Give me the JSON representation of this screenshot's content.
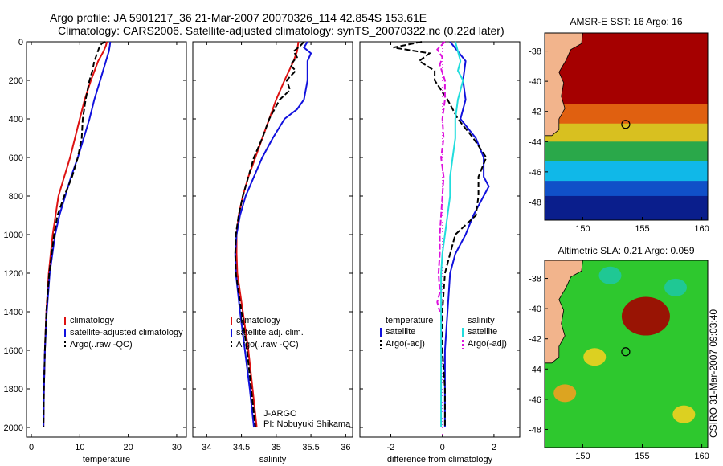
{
  "header": {
    "line1": "Argo profile: JA 5901217_36 21-Mar-2007 20070326_114 42.854S 153.61E",
    "line2": "Climatology: CARS2006. Satellite-adjusted climatology: synTS_20070322.nc (0.22d later)"
  },
  "side_label": "CSIRO 31-Mar-2007 09:03:40",
  "annotation": {
    "line1": "J-ARGO",
    "line2": "PI: Nobuyuki Shikama"
  },
  "colors": {
    "climatology": "#dd1111",
    "satellite": "#1111dd",
    "argo": "#000000",
    "satellite_salinity": "#22dddd",
    "argo_salinity_adj": "#dd11dd",
    "map_ocean_low": "#0a1e8c",
    "map_ocean_high": "#a50000",
    "map_land": "#f2b48c"
  },
  "chart_data": [
    {
      "id": "temperature",
      "type": "line",
      "xlabel": "temperature",
      "ylabel": "",
      "xlim": [
        -1,
        32
      ],
      "ylim": [
        2050,
        0
      ],
      "xticks": [
        0,
        10,
        20,
        30
      ],
      "yticks": [
        0,
        200,
        400,
        600,
        800,
        1000,
        1200,
        1400,
        1600,
        1800,
        2000
      ],
      "legend": {
        "position": "bottom-right",
        "entries": [
          "climatology",
          "satellite-adjusted climatology",
          "Argo(..raw -QC)"
        ]
      },
      "series": [
        {
          "name": "climatology",
          "color": "#dd1111",
          "style": "solid",
          "depth": [
            0,
            20,
            50,
            100,
            200,
            300,
            400,
            500,
            600,
            700,
            800,
            900,
            1000,
            1200,
            1400,
            1600,
            1800,
            2000
          ],
          "values": [
            15.6,
            15.4,
            14.9,
            13.8,
            12.3,
            11.0,
            10.0,
            9.0,
            8.0,
            6.8,
            5.6,
            5.0,
            4.4,
            3.6,
            3.1,
            2.8,
            2.6,
            2.5
          ]
        },
        {
          "name": "satellite-adjusted climatology",
          "color": "#1111dd",
          "style": "solid",
          "depth": [
            0,
            20,
            50,
            100,
            200,
            300,
            400,
            500,
            600,
            700,
            800,
            900,
            1000,
            1200,
            1400,
            1600,
            1800,
            2000
          ],
          "values": [
            16.3,
            16.2,
            16.0,
            15.4,
            14.2,
            13.0,
            12.0,
            10.8,
            9.6,
            8.2,
            7.0,
            5.8,
            4.9,
            3.8,
            3.2,
            2.8,
            2.6,
            2.5
          ]
        },
        {
          "name": "Argo(..raw -QC)",
          "color": "#000000",
          "style": "dashed",
          "depth": [
            0,
            10,
            30,
            60,
            100,
            150,
            200,
            300,
            400,
            500,
            600,
            700,
            800,
            900,
            1000,
            1200,
            1400,
            1600,
            1800,
            2000
          ],
          "values": [
            15.3,
            14.5,
            14.0,
            13.6,
            13.0,
            12.6,
            12.0,
            11.2,
            10.6,
            10.4,
            9.6,
            8.4,
            6.8,
            5.4,
            4.7,
            3.7,
            3.1,
            2.8,
            2.6,
            2.5
          ]
        }
      ]
    },
    {
      "id": "salinity",
      "type": "line",
      "xlabel": "salinity",
      "ylabel": "",
      "xlim": [
        33.8,
        36.1
      ],
      "ylim": [
        2050,
        0
      ],
      "xticks": [
        34,
        34.5,
        35,
        35.5,
        36
      ],
      "yticks": [
        0,
        200,
        400,
        600,
        800,
        1000,
        1200,
        1400,
        1600,
        1800,
        2000
      ],
      "legend": {
        "position": "bottom-right",
        "entries": [
          "climatology",
          "satellite adj. clim.",
          "Argo(..raw -QC)"
        ]
      },
      "series": [
        {
          "name": "climatology",
          "color": "#dd1111",
          "style": "solid",
          "depth": [
            0,
            50,
            100,
            200,
            300,
            400,
            500,
            600,
            700,
            800,
            900,
            1000,
            1100,
            1200,
            1400,
            1600,
            1800,
            2000
          ],
          "values": [
            35.32,
            35.3,
            35.25,
            35.12,
            35.0,
            34.9,
            34.8,
            34.7,
            34.6,
            34.52,
            34.46,
            34.43,
            34.43,
            34.44,
            34.52,
            34.6,
            34.66,
            34.72
          ]
        },
        {
          "name": "satellite adj. clim.",
          "color": "#1111dd",
          "style": "solid",
          "depth": [
            0,
            30,
            60,
            100,
            200,
            300,
            350,
            400,
            500,
            600,
            700,
            800,
            900,
            1000,
            1100,
            1200,
            1400,
            1600,
            1800,
            2000
          ],
          "values": [
            35.45,
            35.4,
            35.5,
            35.45,
            35.45,
            35.4,
            35.3,
            35.12,
            34.95,
            34.8,
            34.68,
            34.56,
            34.48,
            34.43,
            34.41,
            34.42,
            34.48,
            34.55,
            34.62,
            34.68
          ]
        },
        {
          "name": "Argo(..raw -QC)",
          "color": "#000000",
          "style": "dashed",
          "depth": [
            0,
            20,
            50,
            80,
            120,
            150,
            200,
            250,
            300,
            400,
            500,
            600,
            700,
            800,
            900,
            1000,
            1100,
            1200,
            1400,
            1600,
            1800,
            2000
          ],
          "values": [
            35.4,
            35.35,
            35.25,
            35.3,
            35.2,
            35.28,
            35.15,
            35.2,
            35.05,
            34.9,
            34.8,
            34.68,
            34.6,
            34.52,
            34.46,
            34.42,
            34.41,
            34.42,
            34.5,
            34.58,
            34.64,
            34.7
          ]
        }
      ]
    },
    {
      "id": "difference",
      "type": "line",
      "xlabel": "difference from climatology",
      "ylabel": "",
      "xlim": [
        -3.2,
        3.0
      ],
      "ylim": [
        2050,
        0
      ],
      "xticks": [
        -2,
        0,
        2
      ],
      "yticks": [
        0,
        200,
        400,
        600,
        800,
        1000,
        1200,
        1400,
        1600,
        1800,
        2000
      ],
      "legend": {
        "position": "bottom",
        "temperature_title": "temperature",
        "salinity_title": "salinity",
        "entries": [
          "satellite",
          "Argo(-adj)",
          "satellite",
          "Argo(-adj)"
        ]
      },
      "series": [
        {
          "name": "temperature satellite",
          "color": "#1111dd",
          "style": "solid",
          "depth": [
            0,
            50,
            100,
            200,
            300,
            400,
            500,
            600,
            700,
            750,
            800,
            900,
            1000,
            1100,
            1200,
            1400,
            1600,
            1800,
            2000
          ],
          "values": [
            0.3,
            0.6,
            0.9,
            0.8,
            0.9,
            0.7,
            1.3,
            1.6,
            1.6,
            1.8,
            1.6,
            1.2,
            0.9,
            0.5,
            0.3,
            0.2,
            0.1,
            0.1,
            0.1
          ]
        },
        {
          "name": "temperature Argo(-adj)",
          "color": "#000000",
          "style": "dashed",
          "depth": [
            0,
            30,
            60,
            100,
            150,
            200,
            300,
            400,
            500,
            600,
            700,
            800,
            900,
            950,
            1000,
            1100,
            1200,
            1400,
            1600,
            1800,
            2000
          ],
          "values": [
            -0.8,
            -1.9,
            -0.5,
            -0.9,
            -0.3,
            -0.3,
            0.2,
            0.6,
            1.2,
            1.7,
            1.4,
            1.4,
            1.3,
            0.9,
            0.5,
            0.3,
            0.1,
            0.0,
            0.0,
            0.1,
            0.1
          ]
        },
        {
          "name": "salinity satellite",
          "color": "#22dddd",
          "style": "solid",
          "depth": [
            0,
            50,
            100,
            150,
            200,
            300,
            400,
            500,
            600,
            700,
            800,
            900,
            1000,
            1100,
            1200,
            1400,
            1600,
            1800,
            2000
          ],
          "values": [
            0.5,
            0.6,
            0.7,
            0.6,
            0.8,
            0.6,
            0.5,
            0.5,
            0.4,
            0.3,
            0.3,
            0.2,
            0.1,
            0.0,
            -0.05,
            -0.05,
            -0.05,
            -0.05,
            -0.05
          ]
        },
        {
          "name": "salinity Argo(-adj)",
          "color": "#dd11dd",
          "style": "dashed",
          "depth": [
            0,
            40,
            80,
            120,
            160,
            200,
            300,
            400,
            500,
            600,
            700,
            800,
            900,
            1000,
            1100,
            1200,
            1300,
            1350,
            1400
          ],
          "values": [
            0.1,
            -0.2,
            0.0,
            -0.1,
            0.0,
            0.1,
            0.1,
            0.0,
            0.05,
            -0.05,
            0.05,
            0.0,
            -0.05,
            -0.1,
            -0.1,
            -0.15,
            -0.1,
            -0.2,
            -0.1
          ]
        }
      ]
    },
    {
      "id": "sst_map",
      "type": "heatmap",
      "title": "AMSR-E SST: 16 Argo: 16",
      "xlim": [
        146.8,
        160.5
      ],
      "ylim": [
        -49.2,
        -36.8
      ],
      "xticks": [
        150,
        155,
        160
      ],
      "yticks": [
        -38,
        -40,
        -42,
        -44,
        -46,
        -48
      ],
      "marker": {
        "lon": 153.61,
        "lat": -42.854
      },
      "bands": [
        {
          "lat_top": -36.8,
          "lat_bottom": -41.5,
          "color": "#a50000"
        },
        {
          "lat_top": -41.5,
          "lat_bottom": -42.8,
          "color": "#e06010"
        },
        {
          "lat_top": -42.8,
          "lat_bottom": -44.0,
          "color": "#d8c020"
        },
        {
          "lat_top": -44.0,
          "lat_bottom": -45.3,
          "color": "#2aa84a"
        },
        {
          "lat_top": -45.3,
          "lat_bottom": -46.6,
          "color": "#10b8e8"
        },
        {
          "lat_top": -46.6,
          "lat_bottom": -47.6,
          "color": "#1050c8"
        },
        {
          "lat_top": -47.6,
          "lat_bottom": -49.2,
          "color": "#0a1e8c"
        }
      ]
    },
    {
      "id": "sla_map",
      "type": "heatmap",
      "title": "Altimetric SLA: 0.21 Argo: 0.059",
      "xlim": [
        146.8,
        160.5
      ],
      "ylim": [
        -49.2,
        -36.8
      ],
      "xticks": [
        150,
        155,
        160
      ],
      "yticks": [
        -38,
        -40,
        -42,
        -44,
        -46,
        -48
      ],
      "marker": {
        "lon": 153.61,
        "lat": -42.854
      },
      "base_color": "#2ec82e",
      "blobs": [
        {
          "lon": 155.3,
          "lat": -40.5,
          "value": "high",
          "color": "#a50000"
        },
        {
          "lon": 152.3,
          "lat": -37.8,
          "value": "low",
          "color": "#1ec8a0"
        },
        {
          "lon": 157.8,
          "lat": -38.6,
          "value": "low",
          "color": "#1ec8a0"
        },
        {
          "lon": 151.0,
          "lat": -43.2,
          "value": "mid",
          "color": "#f0d020"
        },
        {
          "lon": 158.5,
          "lat": -47.0,
          "value": "mid",
          "color": "#f0d020"
        },
        {
          "lon": 148.5,
          "lat": -45.6,
          "value": "mid",
          "color": "#f0a020"
        }
      ]
    }
  ]
}
